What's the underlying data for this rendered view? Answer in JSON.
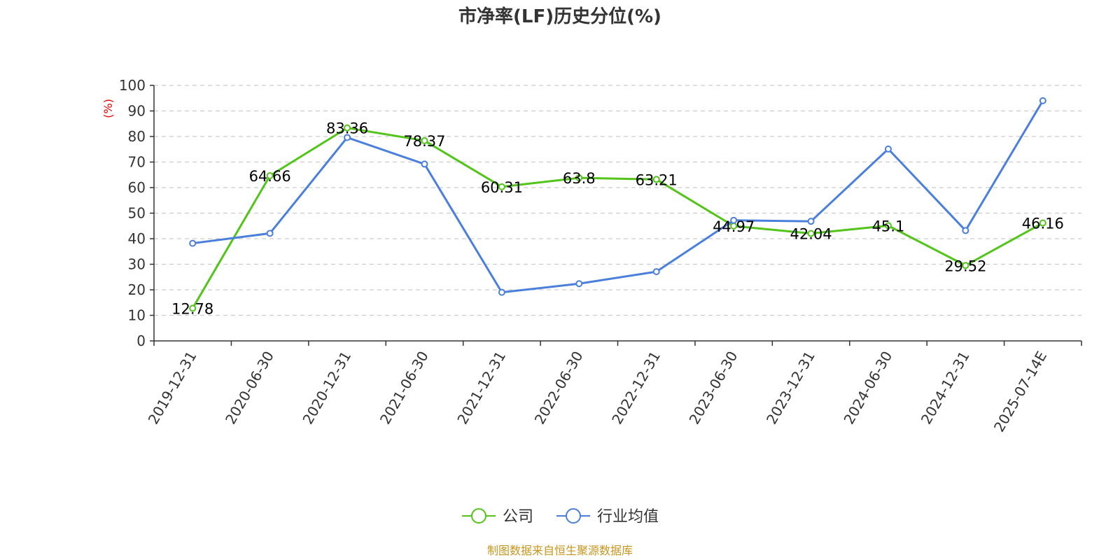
{
  "chart_data": {
    "type": "line",
    "title": "市净率(LF)历史分位(%)",
    "ylabel": "(%)",
    "ylim": [
      0,
      100
    ],
    "yticks": [
      0,
      10,
      20,
      30,
      40,
      50,
      60,
      70,
      80,
      90,
      100
    ],
    "grid": true,
    "legend_position": "bottom",
    "categories": [
      "2019-12-31",
      "2020-06-30",
      "2020-12-31",
      "2021-06-30",
      "2021-12-31",
      "2022-06-30",
      "2022-12-31",
      "2023-06-30",
      "2023-12-31",
      "2024-06-30",
      "2024-12-31",
      "2025-07-14E"
    ],
    "series": [
      {
        "name": "公司",
        "color": "#52c41a",
        "show_labels": true,
        "values": [
          12.78,
          64.66,
          83.36,
          78.37,
          60.31,
          63.8,
          63.21,
          44.97,
          42.04,
          45.1,
          29.52,
          46.16
        ]
      },
      {
        "name": "行业均值",
        "color": "#4a7fdc",
        "show_labels": false,
        "values": [
          38.2,
          42.1,
          79.6,
          69.2,
          19.0,
          22.4,
          27.1,
          47.2,
          46.8,
          75.1,
          43.2,
          94.0
        ]
      }
    ],
    "source": "制图数据来自恒生聚源数据库"
  }
}
